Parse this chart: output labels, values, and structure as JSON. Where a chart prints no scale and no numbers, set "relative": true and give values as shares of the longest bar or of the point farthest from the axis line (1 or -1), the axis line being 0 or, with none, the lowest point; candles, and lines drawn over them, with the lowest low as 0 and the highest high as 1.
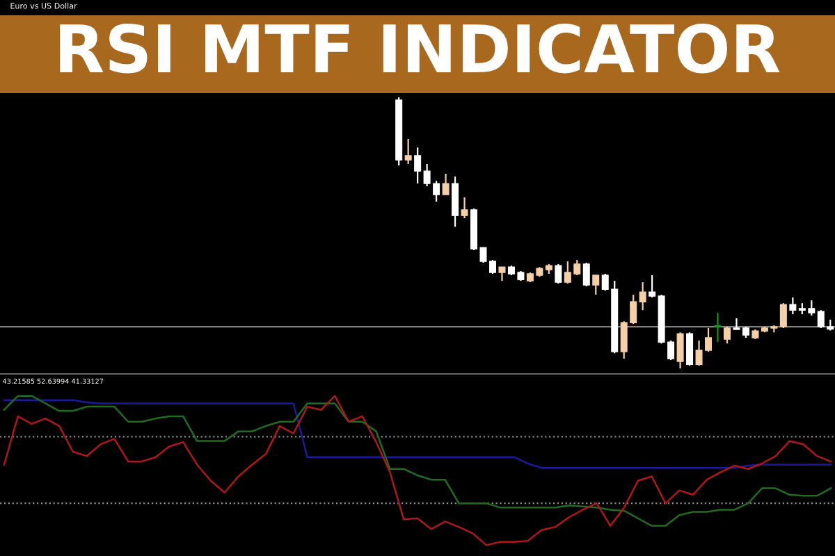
{
  "chart_data": [
    {
      "type": "candlestick",
      "title": "RSI MTF INDICATOR",
      "annotations": [
        "Euro vs US Dollar"
      ],
      "relative": true,
      "categories": [
        null,
        null,
        null,
        null,
        null,
        null,
        null,
        null,
        null,
        null,
        null,
        null,
        null,
        null,
        null,
        null,
        null,
        null,
        null,
        null,
        null,
        null,
        null,
        null,
        null,
        null,
        null,
        null,
        null,
        null,
        null,
        null,
        null,
        null,
        null,
        null,
        null,
        null,
        null,
        null,
        null,
        null,
        null,
        null,
        null,
        null,
        null
      ],
      "ohlc": [
        [
          0.99,
          1.0,
          0.749,
          0.769
        ],
        [
          0.769,
          0.846,
          0.754,
          0.785
        ],
        [
          0.785,
          0.815,
          0.682,
          0.728
        ],
        [
          0.728,
          0.754,
          0.672,
          0.682
        ],
        [
          0.682,
          0.692,
          0.615,
          0.641
        ],
        [
          0.641,
          0.718,
          0.641,
          0.682
        ],
        [
          0.682,
          0.708,
          0.523,
          0.564
        ],
        [
          0.564,
          0.631,
          0.554,
          0.585
        ],
        [
          0.585,
          0.59,
          0.436,
          0.441
        ],
        [
          0.446,
          0.446,
          0.39,
          0.395
        ],
        [
          0.395,
          0.4,
          0.349,
          0.354
        ],
        [
          0.354,
          0.374,
          0.323,
          0.374
        ],
        [
          0.374,
          0.379,
          0.344,
          0.349
        ],
        [
          0.354,
          0.359,
          0.323,
          0.328
        ],
        [
          0.323,
          0.354,
          0.318,
          0.349
        ],
        [
          0.344,
          0.374,
          0.338,
          0.369
        ],
        [
          0.364,
          0.385,
          0.349,
          0.379
        ],
        [
          0.379,
          0.385,
          0.313,
          0.318
        ],
        [
          0.318,
          0.395,
          0.313,
          0.354
        ],
        [
          0.349,
          0.4,
          0.344,
          0.385
        ],
        [
          0.385,
          0.39,
          0.303,
          0.308
        ],
        [
          0.308,
          0.344,
          0.272,
          0.344
        ],
        [
          0.344,
          0.349,
          0.287,
          0.292
        ],
        [
          0.292,
          0.323,
          0.056,
          0.062
        ],
        [
          0.062,
          0.174,
          0.036,
          0.169
        ],
        [
          0.169,
          0.272,
          0.164,
          0.246
        ],
        [
          0.246,
          0.318,
          0.215,
          0.282
        ],
        [
          0.282,
          0.344,
          0.262,
          0.267
        ],
        [
          0.267,
          0.272,
          0.092,
          0.097
        ],
        [
          0.097,
          0.103,
          0.031,
          0.036
        ],
        [
          0.026,
          0.133,
          0.0,
          0.128
        ],
        [
          0.128,
          0.133,
          0.01,
          0.015
        ],
        [
          0.015,
          0.103,
          0.01,
          0.067
        ],
        [
          0.067,
          0.149,
          0.062,
          0.113
        ],
        [
          0.154,
          0.205,
          0.097,
          0.154
        ],
        [
          0.108,
          0.154,
          0.092,
          0.149
        ],
        [
          0.149,
          0.185,
          0.144,
          0.144
        ],
        [
          0.149,
          0.154,
          0.113,
          0.123
        ],
        [
          0.113,
          0.144,
          0.108,
          0.138
        ],
        [
          0.138,
          0.154,
          0.133,
          0.149
        ],
        [
          0.149,
          0.159,
          0.133,
          0.154
        ],
        [
          0.154,
          0.241,
          0.149,
          0.236
        ],
        [
          0.236,
          0.262,
          0.2,
          0.215
        ],
        [
          0.221,
          0.241,
          0.2,
          0.215
        ],
        [
          0.221,
          0.251,
          0.195,
          0.205
        ],
        [
          0.21,
          0.215,
          0.149,
          0.154
        ],
        [
          0.154,
          0.18,
          0.14,
          0.145
        ]
      ],
      "colors": [
        "#ffffff",
        "#f5cfa6",
        "#ffffff",
        "#ffffff",
        "#ffffff",
        "#f5cfa6",
        "#ffffff",
        "#f5cfa6",
        "#ffffff",
        "#ffffff",
        "#ffffff",
        "#f5cfa6",
        "#ffffff",
        "#ffffff",
        "#f5cfa6",
        "#f5cfa6",
        "#f5cfa6",
        "#ffffff",
        "#f5cfa6",
        "#f5cfa6",
        "#ffffff",
        "#f5cfa6",
        "#ffffff",
        "#ffffff",
        "#f5cfa6",
        "#f5cfa6",
        "#f5cfa6",
        "#ffffff",
        "#ffffff",
        "#ffffff",
        "#f5cfa6",
        "#ffffff",
        "#f5cfa6",
        "#f5cfa6",
        "#1e8c1e",
        "#f5cfa6",
        "#ffffff",
        "#ffffff",
        "#f5cfa6",
        "#f5cfa6",
        "#f5cfa6",
        "#f5cfa6",
        "#ffffff",
        "#ffffff",
        "#ffffff",
        "#ffffff",
        "#ffffff"
      ],
      "ref_lines": [
        {
          "axis": "y",
          "value": 0.154,
          "color": "#7f7f7f",
          "line_style": "solid"
        }
      ]
    },
    {
      "type": "line",
      "annotations": [
        "43.21585 52.63994 41.33127"
      ],
      "relative": true,
      "line_style": "solid",
      "categories": [
        null,
        null,
        null,
        null,
        null,
        null,
        null,
        null,
        null,
        null,
        null,
        null,
        null,
        null,
        null,
        null,
        null,
        null,
        null,
        null,
        null,
        null,
        null,
        null,
        null,
        null,
        null,
        null,
        null,
        null,
        null,
        null,
        null,
        null,
        null,
        null,
        null,
        null,
        null,
        null,
        null,
        null,
        null,
        null,
        null,
        null,
        null,
        null,
        null,
        null,
        null,
        null,
        null,
        null,
        null,
        null,
        null,
        null,
        null,
        null,
        null
      ],
      "ref_lines": [
        {
          "axis": "y",
          "value": 0.62,
          "color": "#8c8c8c",
          "line_style": "dotted"
        },
        {
          "axis": "y",
          "value": 0.0,
          "color": "#8c8c8c",
          "line_style": "dotted"
        }
      ],
      "series": [
        {
          "color": "#1a1a9a",
          "values": [
            0.96,
            0.96,
            0.96,
            0.96,
            0.96,
            0.96,
            0.94,
            0.93,
            0.93,
            0.93,
            0.93,
            0.93,
            0.93,
            0.93,
            0.93,
            0.93,
            0.93,
            0.93,
            0.93,
            0.93,
            0.93,
            0.93,
            0.43,
            0.43,
            0.43,
            0.43,
            0.43,
            0.43,
            0.43,
            0.43,
            0.43,
            0.43,
            0.43,
            0.43,
            0.43,
            0.43,
            0.43,
            0.43,
            0.37,
            0.33,
            0.33,
            0.33,
            0.33,
            0.33,
            0.33,
            0.33,
            0.33,
            0.33,
            0.33,
            0.33,
            0.33,
            0.33,
            0.33,
            0.33,
            0.35,
            0.36,
            0.36,
            0.36,
            0.36,
            0.36,
            0.36
          ]
        },
        {
          "color": "#1f6e1f",
          "values": [
            0.87,
            1.0,
            1.0,
            0.93,
            0.86,
            0.86,
            0.9,
            0.9,
            0.9,
            0.76,
            0.76,
            0.79,
            0.81,
            0.81,
            0.58,
            0.58,
            0.58,
            0.67,
            0.67,
            0.72,
            0.76,
            0.76,
            0.93,
            0.93,
            0.93,
            0.76,
            0.76,
            0.67,
            0.32,
            0.32,
            0.26,
            0.22,
            0.22,
            0.0,
            0.0,
            0.0,
            -0.04,
            -0.04,
            -0.04,
            -0.04,
            -0.04,
            -0.02,
            -0.03,
            -0.04,
            -0.06,
            -0.07,
            -0.14,
            -0.21,
            -0.21,
            -0.11,
            -0.08,
            -0.08,
            -0.06,
            -0.06,
            0.0,
            0.14,
            0.14,
            0.08,
            0.07,
            0.07,
            0.14
          ]
        },
        {
          "color": "#b01818",
          "values": [
            0.36,
            0.81,
            0.74,
            0.79,
            0.72,
            0.48,
            0.44,
            0.55,
            0.6,
            0.39,
            0.39,
            0.43,
            0.53,
            0.57,
            0.36,
            0.21,
            0.1,
            0.25,
            0.36,
            0.46,
            0.72,
            0.65,
            0.9,
            0.87,
            1.0,
            0.76,
            0.81,
            0.57,
            0.29,
            -0.15,
            -0.14,
            -0.24,
            -0.17,
            -0.22,
            -0.28,
            -0.39,
            -0.36,
            -0.36,
            -0.35,
            -0.25,
            -0.22,
            -0.13,
            -0.06,
            0.0,
            -0.21,
            -0.04,
            0.21,
            0.25,
            0.0,
            0.12,
            0.08,
            0.22,
            0.29,
            0.35,
            0.32,
            0.37,
            0.44,
            0.58,
            0.55,
            0.44,
            0.39
          ]
        }
      ]
    }
  ]
}
